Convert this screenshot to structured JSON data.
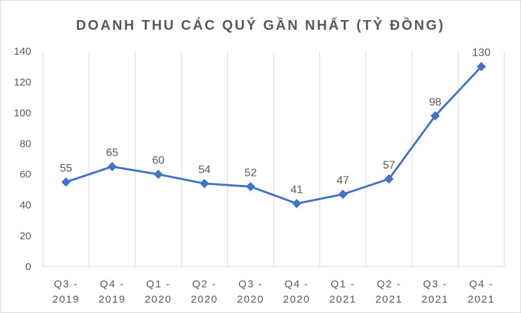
{
  "chart_data": {
    "type": "line",
    "title": "DOANH THU CÁC QUÝ GẦN NHẤT (TỶ ĐỒNG)",
    "categories": [
      [
        "Q3 -",
        "2019"
      ],
      [
        "Q4 -",
        "2019"
      ],
      [
        "Q1 -",
        "2020"
      ],
      [
        "Q2 -",
        "2020"
      ],
      [
        "Q3 -",
        "2020"
      ],
      [
        "Q4 -",
        "2020"
      ],
      [
        "Q1 -",
        "2021"
      ],
      [
        "Q2 -",
        "2021"
      ],
      [
        "Q3 -",
        "2021"
      ],
      [
        "Q4 -",
        "2021"
      ]
    ],
    "series": [
      {
        "values": [
          55,
          65,
          60,
          54,
          52,
          41,
          47,
          57,
          98,
          130
        ],
        "color": "#4472c4"
      }
    ],
    "ylim": [
      0,
      140
    ],
    "yticks": [
      0,
      20,
      40,
      60,
      80,
      100,
      120,
      140
    ],
    "grid": "vertical",
    "legend": "none",
    "marker": "diamond"
  }
}
